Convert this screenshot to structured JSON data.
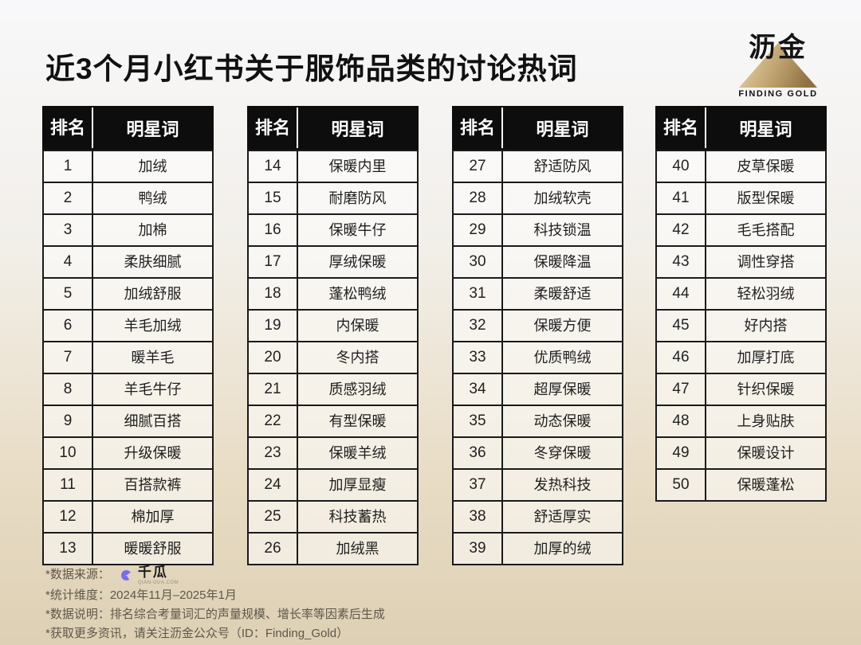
{
  "page": {
    "title": "近3个月小红书关于服饰品类的讨论热词"
  },
  "brand": {
    "name": "沥金",
    "tagline": "FINDING GOLD"
  },
  "table_header": {
    "rank": "排名",
    "word": "明星词"
  },
  "tables": [
    {
      "rows": [
        {
          "rank": "1",
          "word": "加绒"
        },
        {
          "rank": "2",
          "word": "鸭绒"
        },
        {
          "rank": "3",
          "word": "加棉"
        },
        {
          "rank": "4",
          "word": "柔肤细腻"
        },
        {
          "rank": "5",
          "word": "加绒舒服"
        },
        {
          "rank": "6",
          "word": "羊毛加绒"
        },
        {
          "rank": "7",
          "word": "暖羊毛"
        },
        {
          "rank": "8",
          "word": "羊毛牛仔"
        },
        {
          "rank": "9",
          "word": "细腻百搭"
        },
        {
          "rank": "10",
          "word": "升级保暖"
        },
        {
          "rank": "11",
          "word": "百搭款裤"
        },
        {
          "rank": "12",
          "word": "棉加厚"
        },
        {
          "rank": "13",
          "word": "暖暖舒服"
        }
      ]
    },
    {
      "rows": [
        {
          "rank": "14",
          "word": "保暖内里"
        },
        {
          "rank": "15",
          "word": "耐磨防风"
        },
        {
          "rank": "16",
          "word": "保暖牛仔"
        },
        {
          "rank": "17",
          "word": "厚绒保暖"
        },
        {
          "rank": "18",
          "word": "蓬松鸭绒"
        },
        {
          "rank": "19",
          "word": "内保暖"
        },
        {
          "rank": "20",
          "word": "冬内搭"
        },
        {
          "rank": "21",
          "word": "质感羽绒"
        },
        {
          "rank": "22",
          "word": "有型保暖"
        },
        {
          "rank": "23",
          "word": "保暖羊绒"
        },
        {
          "rank": "24",
          "word": "加厚显瘦"
        },
        {
          "rank": "25",
          "word": "科技蓄热"
        },
        {
          "rank": "26",
          "word": "加绒黑"
        }
      ]
    },
    {
      "rows": [
        {
          "rank": "27",
          "word": "舒适防风"
        },
        {
          "rank": "28",
          "word": "加绒软壳"
        },
        {
          "rank": "29",
          "word": "科技锁温"
        },
        {
          "rank": "30",
          "word": "保暖降温"
        },
        {
          "rank": "31",
          "word": "柔暖舒适"
        },
        {
          "rank": "32",
          "word": "保暖方便"
        },
        {
          "rank": "33",
          "word": "优质鸭绒"
        },
        {
          "rank": "34",
          "word": "超厚保暖"
        },
        {
          "rank": "35",
          "word": "动态保暖"
        },
        {
          "rank": "36",
          "word": "冬穿保暖"
        },
        {
          "rank": "37",
          "word": "发热科技"
        },
        {
          "rank": "38",
          "word": "舒适厚实"
        },
        {
          "rank": "39",
          "word": "加厚的绒"
        }
      ]
    },
    {
      "rows": [
        {
          "rank": "40",
          "word": "皮草保暖"
        },
        {
          "rank": "41",
          "word": "版型保暖"
        },
        {
          "rank": "42",
          "word": "毛毛搭配"
        },
        {
          "rank": "43",
          "word": "调性穿搭"
        },
        {
          "rank": "44",
          "word": "轻松羽绒"
        },
        {
          "rank": "45",
          "word": "好内搭"
        },
        {
          "rank": "46",
          "word": "加厚打底"
        },
        {
          "rank": "47",
          "word": "针织保暖"
        },
        {
          "rank": "48",
          "word": "上身贴肤"
        },
        {
          "rank": "49",
          "word": "保暖设计"
        },
        {
          "rank": "50",
          "word": "保暖蓬松"
        }
      ]
    }
  ],
  "footer": {
    "source_label": "*数据来源：",
    "source_brand": "千瓜",
    "source_brand_caption": "QIAN-GUA.COM",
    "line_dimension": "*统计维度：2024年11月–2025年1月",
    "line_note": "*数据说明：排名综合考量词汇的声量规模、增长率等因素后生成",
    "line_more": "*获取更多资讯，请关注沥金公众号（ID：Finding_Gold）"
  },
  "colors": {
    "accent_gold": "#a98b55",
    "qiangua_purple": "#7a6cf0",
    "table_header_bg": "#0d0d0d",
    "table_border": "#1a1a1a",
    "bg_top": "#f8f8fa",
    "bg_bottom": "#ddd0b4"
  },
  "chart_data": {
    "type": "table",
    "title": "近3个月小红书关于服饰品类的讨论热词",
    "columns": [
      "排名",
      "明星词"
    ],
    "rows": [
      [
        1,
        "加绒"
      ],
      [
        2,
        "鸭绒"
      ],
      [
        3,
        "加棉"
      ],
      [
        4,
        "柔肤细腻"
      ],
      [
        5,
        "加绒舒服"
      ],
      [
        6,
        "羊毛加绒"
      ],
      [
        7,
        "暖羊毛"
      ],
      [
        8,
        "羊毛牛仔"
      ],
      [
        9,
        "细腻百搭"
      ],
      [
        10,
        "升级保暖"
      ],
      [
        11,
        "百搭款裤"
      ],
      [
        12,
        "棉加厚"
      ],
      [
        13,
        "暖暖舒服"
      ],
      [
        14,
        "保暖内里"
      ],
      [
        15,
        "耐磨防风"
      ],
      [
        16,
        "保暖牛仔"
      ],
      [
        17,
        "厚绒保暖"
      ],
      [
        18,
        "蓬松鸭绒"
      ],
      [
        19,
        "内保暖"
      ],
      [
        20,
        "冬内搭"
      ],
      [
        21,
        "质感羽绒"
      ],
      [
        22,
        "有型保暖"
      ],
      [
        23,
        "保暖羊绒"
      ],
      [
        24,
        "加厚显瘦"
      ],
      [
        25,
        "科技蓄热"
      ],
      [
        26,
        "加绒黑"
      ],
      [
        27,
        "舒适防风"
      ],
      [
        28,
        "加绒软壳"
      ],
      [
        29,
        "科技锁温"
      ],
      [
        30,
        "保暖降温"
      ],
      [
        31,
        "柔暖舒适"
      ],
      [
        32,
        "保暖方便"
      ],
      [
        33,
        "优质鸭绒"
      ],
      [
        34,
        "超厚保暖"
      ],
      [
        35,
        "动态保暖"
      ],
      [
        36,
        "冬穿保暖"
      ],
      [
        37,
        "发热科技"
      ],
      [
        38,
        "舒适厚实"
      ],
      [
        39,
        "加厚的绒"
      ],
      [
        40,
        "皮草保暖"
      ],
      [
        41,
        "版型保暖"
      ],
      [
        42,
        "毛毛搭配"
      ],
      [
        43,
        "调性穿搭"
      ],
      [
        44,
        "轻松羽绒"
      ],
      [
        45,
        "好内搭"
      ],
      [
        46,
        "加厚打底"
      ],
      [
        47,
        "针织保暖"
      ],
      [
        48,
        "上身贴肤"
      ],
      [
        49,
        "保暖设计"
      ],
      [
        50,
        "保暖蓬松"
      ]
    ]
  }
}
